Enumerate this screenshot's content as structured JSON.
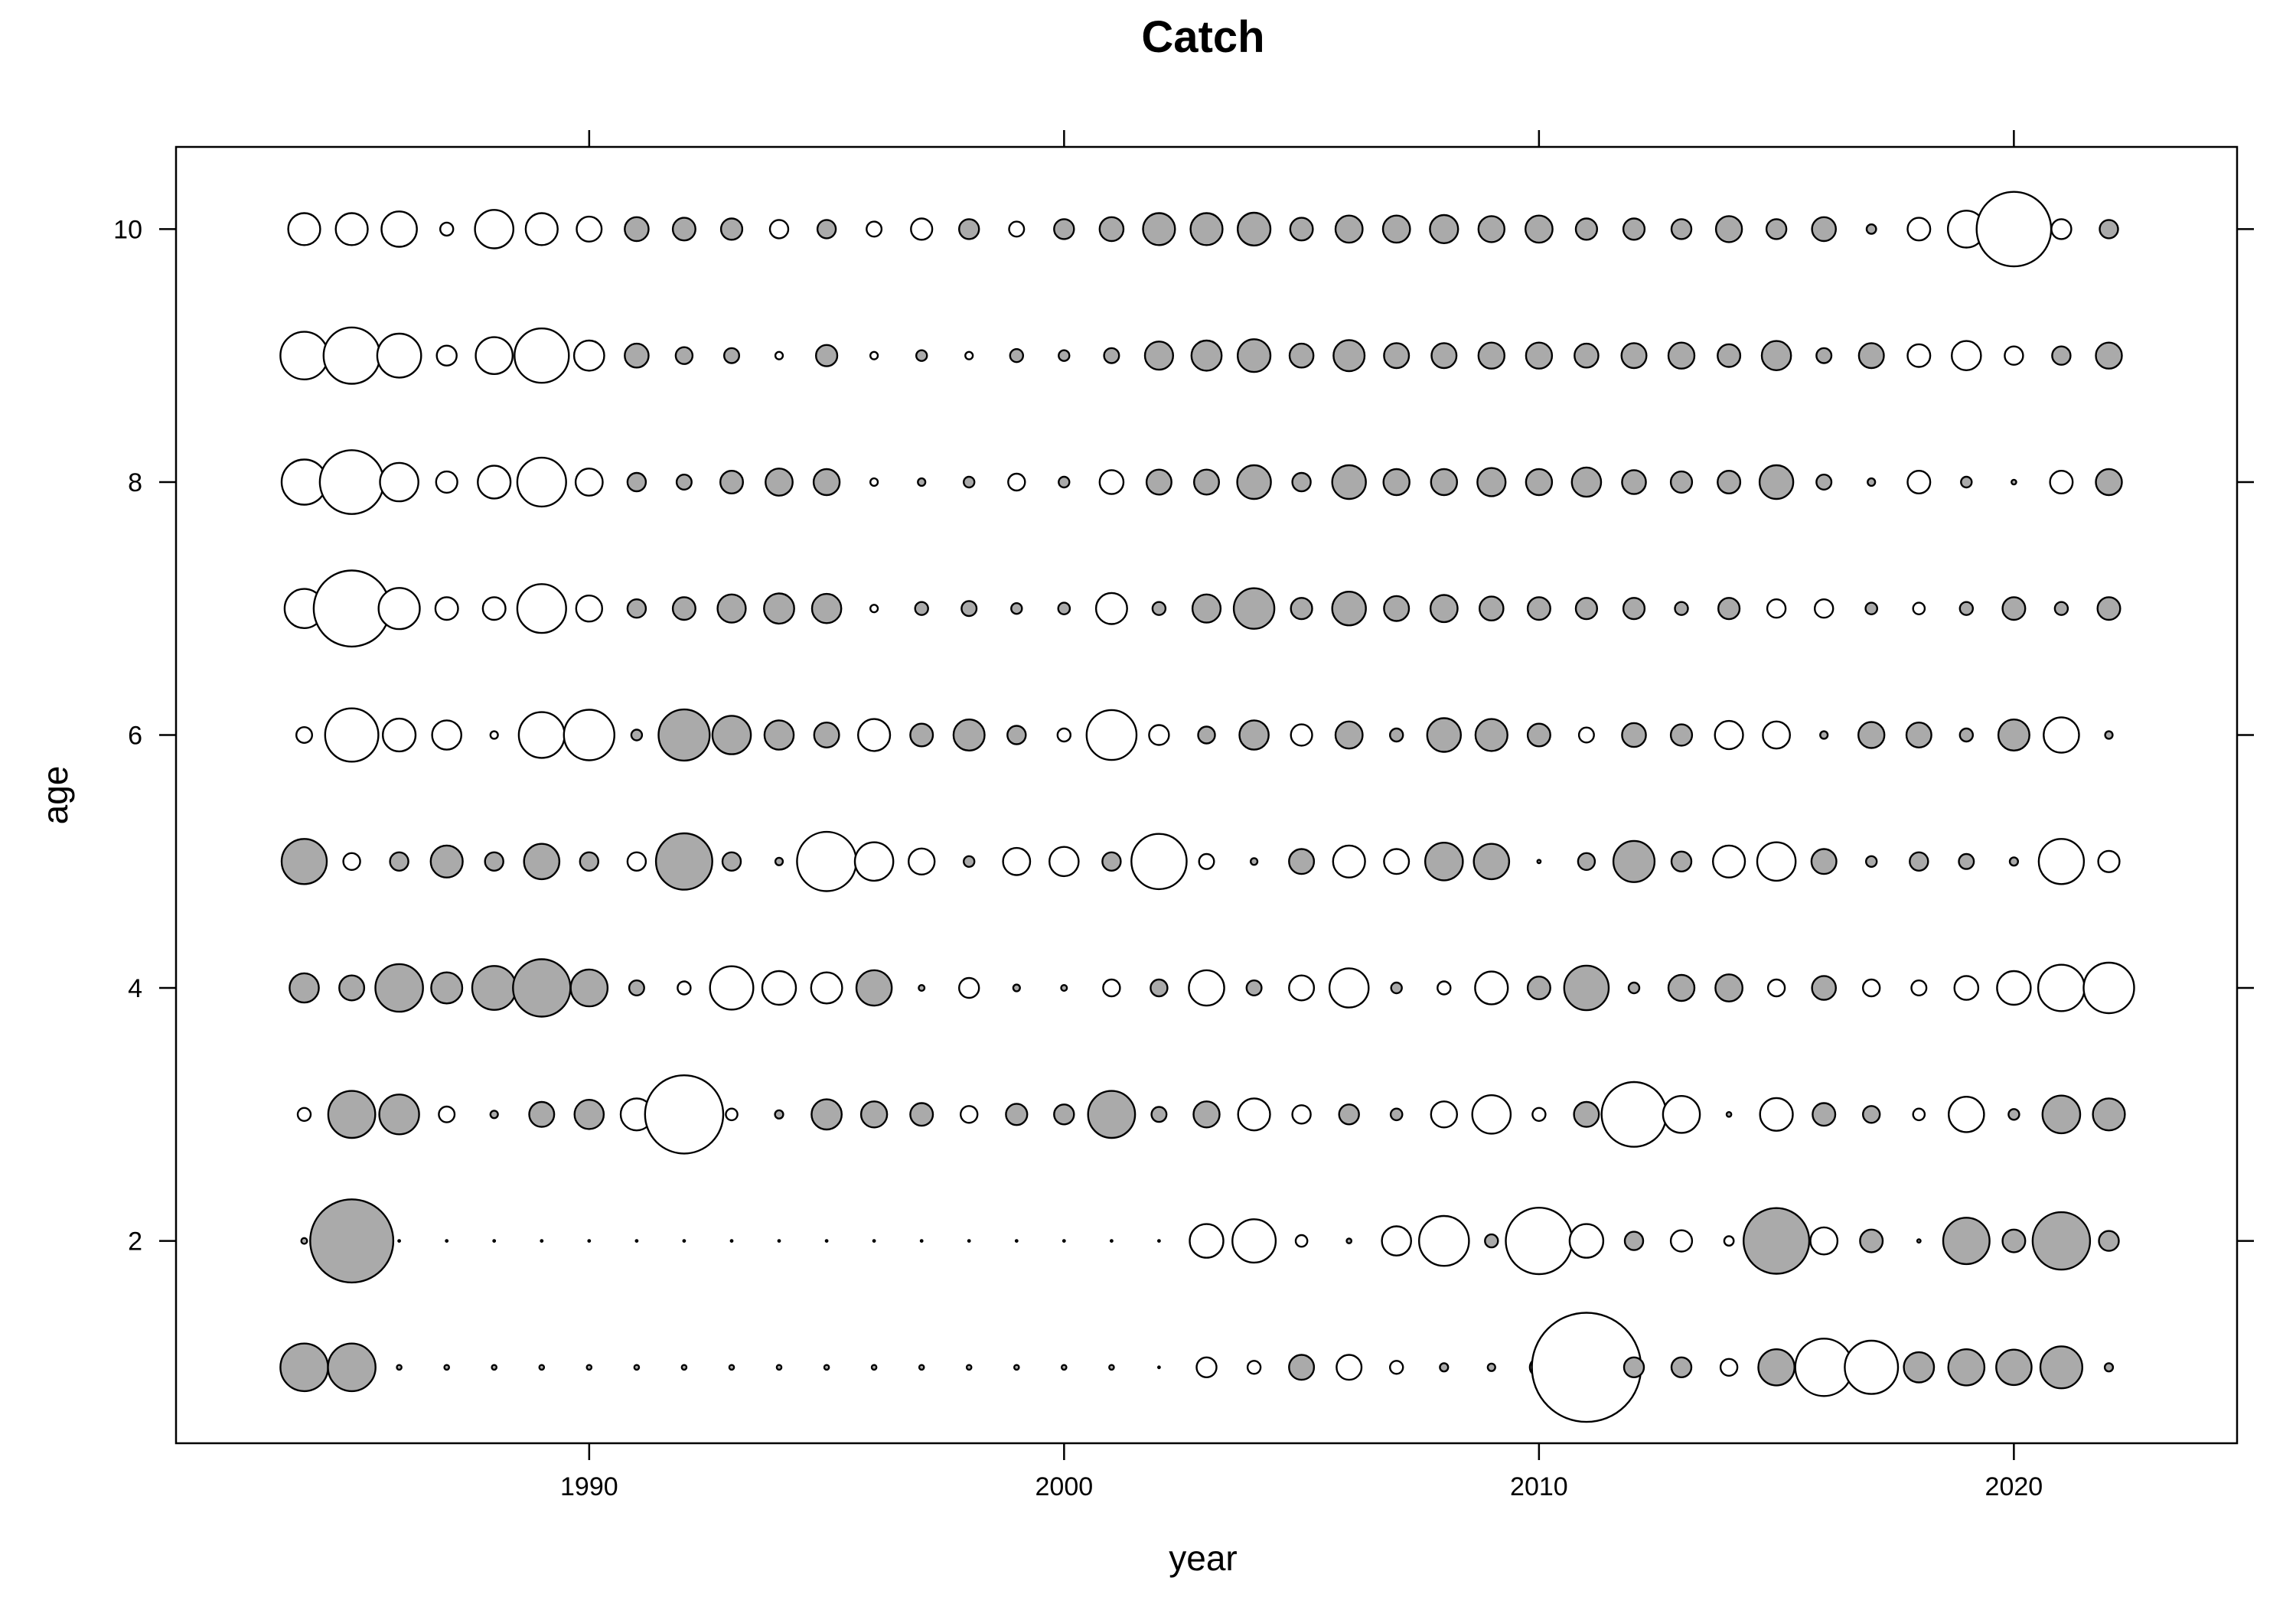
{
  "chart_data": {
    "type": "bubble",
    "title": "Catch",
    "xlabel": "year",
    "ylabel": "age",
    "xlim": [
      1981.3,
      2024.7
    ],
    "ylim": [
      0.4,
      10.65
    ],
    "xticks": [
      1990,
      2000,
      2010,
      2020
    ],
    "yticks": [
      2,
      4,
      6,
      8,
      10
    ],
    "years": [
      1984,
      1985,
      1986,
      1987,
      1988,
      1989,
      1990,
      1991,
      1992,
      1993,
      1994,
      1995,
      1996,
      1997,
      1998,
      1999,
      2000,
      2001,
      2002,
      2003,
      2004,
      2005,
      2006,
      2007,
      2008,
      2009,
      2010,
      2011,
      2012,
      2013,
      2014,
      2015,
      2016,
      2017,
      2018,
      2019,
      2020,
      2021,
      2022
    ],
    "ages": [
      1,
      2,
      3,
      4,
      5,
      6,
      7,
      8,
      9,
      10
    ],
    "encoding": {
      "size": "bubble area proportional to absolute residual",
      "fill_positive": "#aaaaaa",
      "fill_negative": "#ffffff",
      "stroke": "#000000"
    },
    "residuals": {
      "10": [
        -0.9,
        -0.9,
        -1.1,
        -0.15,
        -1.3,
        -0.9,
        -0.55,
        0.5,
        0.45,
        0.4,
        -0.3,
        0.3,
        -0.2,
        -0.4,
        0.35,
        -0.2,
        0.35,
        0.5,
        0.9,
        0.9,
        0.95,
        0.45,
        0.65,
        0.65,
        0.7,
        0.6,
        0.65,
        0.4,
        0.4,
        0.35,
        0.6,
        0.35,
        0.5,
        0.08,
        -0.45,
        -1.2,
        -4.9,
        -0.35,
        0.3
      ],
      "9": [
        -2.0,
        -2.8,
        -1.7,
        -0.35,
        -1.2,
        -2.6,
        -0.8,
        0.5,
        0.25,
        0.2,
        -0.05,
        0.4,
        -0.05,
        0.1,
        -0.05,
        0.15,
        0.1,
        0.2,
        0.7,
        0.8,
        0.95,
        0.5,
        0.85,
        0.55,
        0.55,
        0.6,
        0.6,
        0.5,
        0.55,
        0.6,
        0.45,
        0.75,
        0.2,
        0.55,
        -0.45,
        -0.75,
        -0.3,
        0.3,
        0.6
      ],
      "8": [
        -1.8,
        -3.6,
        -1.3,
        -0.4,
        -0.95,
        -2.1,
        -0.65,
        0.3,
        0.2,
        0.45,
        0.65,
        0.6,
        -0.05,
        0.05,
        0.1,
        -0.25,
        0.1,
        -0.5,
        0.55,
        0.55,
        1.0,
        0.3,
        1.0,
        0.6,
        0.6,
        0.7,
        0.6,
        0.75,
        0.5,
        0.4,
        0.45,
        1.0,
        0.2,
        0.05,
        -0.45,
        0.1,
        0.02,
        -0.45,
        0.6
      ],
      "7": [
        -1.35,
        -5.1,
        -1.5,
        -0.45,
        -0.45,
        -2.1,
        -0.6,
        0.3,
        0.45,
        0.7,
        0.8,
        0.75,
        -0.05,
        0.15,
        0.2,
        0.1,
        0.12,
        -0.85,
        0.15,
        0.7,
        1.45,
        0.4,
        1.0,
        0.55,
        0.65,
        0.5,
        0.45,
        0.4,
        0.4,
        0.15,
        0.4,
        -0.3,
        -0.3,
        0.12,
        -0.12,
        0.15,
        0.45,
        0.15,
        0.45
      ],
      "6": [
        -0.22,
        -2.5,
        -0.95,
        -0.75,
        -0.05,
        -1.85,
        -2.25,
        0.1,
        2.3,
        1.3,
        0.75,
        0.55,
        -0.9,
        0.45,
        0.85,
        0.3,
        -0.15,
        -2.2,
        -0.35,
        0.25,
        0.75,
        -0.4,
        0.65,
        0.15,
        1.0,
        0.9,
        0.45,
        -0.2,
        0.5,
        0.4,
        -0.7,
        -0.65,
        0.05,
        0.6,
        0.55,
        0.15,
        0.85,
        -1.1,
        0.05
      ],
      "5": [
        1.8,
        -0.25,
        0.3,
        0.9,
        0.3,
        1.1,
        0.3,
        -0.3,
        2.8,
        0.3,
        0.05,
        -3.1,
        -1.3,
        -0.6,
        0.1,
        -0.65,
        -0.75,
        0.3,
        -2.7,
        -0.2,
        0.04,
        0.55,
        -0.9,
        -0.55,
        1.25,
        1.1,
        0.01,
        0.25,
        1.5,
        0.35,
        -0.9,
        -1.3,
        0.55,
        0.1,
        0.3,
        0.2,
        0.06,
        -1.8,
        -0.4
      ],
      "4": [
        0.75,
        0.55,
        2.0,
        0.85,
        1.7,
        2.9,
        1.2,
        0.2,
        -0.15,
        -1.65,
        -1.0,
        -0.85,
        1.1,
        0.03,
        -0.35,
        0.04,
        0.03,
        -0.25,
        0.25,
        -1.1,
        0.2,
        -0.55,
        -1.35,
        0.1,
        -0.15,
        -0.95,
        0.45,
        1.75,
        0.1,
        0.6,
        0.65,
        -0.25,
        0.5,
        -0.25,
        -0.2,
        -0.5,
        -1.0,
        -1.9,
        -2.25
      ],
      "3": [
        -0.15,
        1.95,
        1.4,
        -0.22,
        0.05,
        0.55,
        0.75,
        -0.9,
        -5.4,
        -0.12,
        0.06,
        0.8,
        0.6,
        0.45,
        -0.25,
        0.4,
        0.35,
        1.95,
        0.2,
        0.6,
        -0.9,
        -0.3,
        0.35,
        0.12,
        -0.6,
        -1.3,
        -0.15,
        0.55,
        -3.7,
        -1.2,
        0.02,
        -0.95,
        0.45,
        0.25,
        -0.12,
        -1.1,
        0.1,
        1.25,
        0.9
      ],
      "2": [
        0.03,
        6.1,
        0.0,
        0.0,
        0.0,
        0.0,
        0.0,
        0.0,
        0.0,
        0.0,
        0.0,
        0.0,
        0.0,
        0.0,
        0.0,
        0.0,
        0.0,
        0.0,
        0.0,
        -1.0,
        -1.65,
        -0.12,
        0.02,
        -0.75,
        -2.2,
        0.15,
        -3.9,
        -1.0,
        0.3,
        -0.4,
        -0.08,
        3.8,
        -0.65,
        0.45,
        0.01,
        1.9,
        0.45,
        2.9,
        0.35
      ],
      "1": [
        2.0,
        2.0,
        0.02,
        0.02,
        0.02,
        0.02,
        0.02,
        0.02,
        0.02,
        0.02,
        0.02,
        0.02,
        0.02,
        0.02,
        0.02,
        0.02,
        0.02,
        0.02,
        0.0,
        -0.35,
        -0.15,
        0.55,
        -0.55,
        -0.15,
        0.06,
        0.05,
        -0.3,
        -10.5,
        0.35,
        0.35,
        -0.25,
        1.15,
        -2.9,
        -2.5,
        0.8,
        1.15,
        1.1,
        1.55,
        0.06
      ]
    }
  }
}
